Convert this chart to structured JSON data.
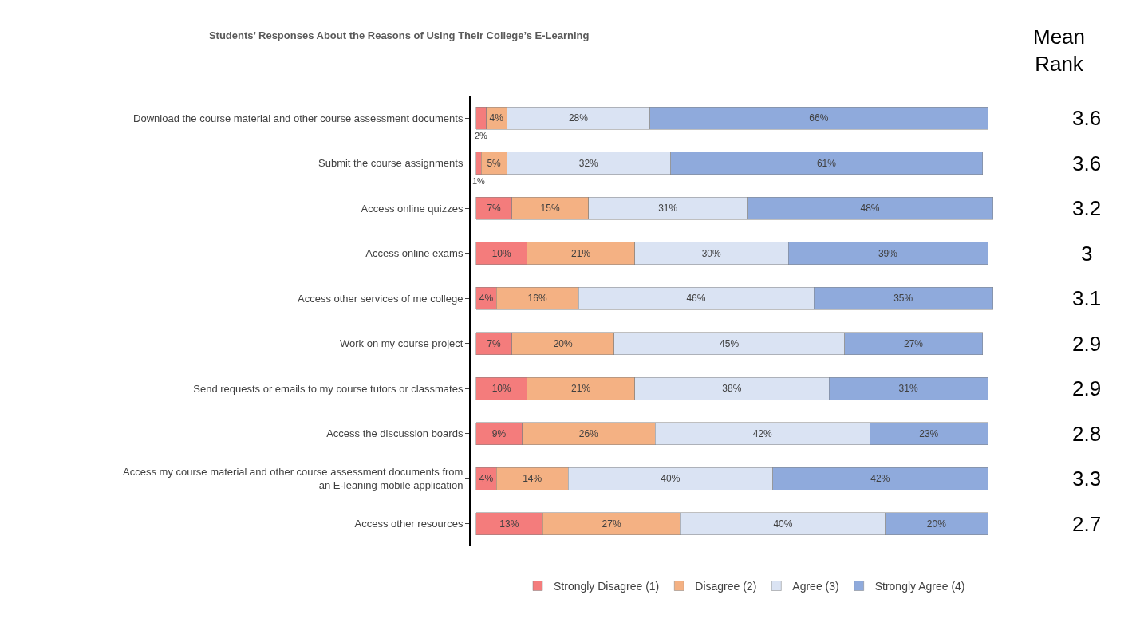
{
  "chart_data": {
    "type": "bar",
    "orientation": "horizontal",
    "stacked": true,
    "title": "Students’ Responses About the Reasons of Using Their College’s E-Learning",
    "categories": [
      "Download the course material and other course assessment documents",
      "Submit the course assignments",
      "Access online quizzes",
      "Access online exams",
      "Access other services of me college",
      "Work on my course project",
      "Send requests or emails to my course tutors or classmates",
      "Access the discussion boards",
      "Access my course material and other course assessment documents from an E-leaning mobile application",
      "Access other resources"
    ],
    "series": [
      {
        "name": "Strongly Disagree (1)",
        "color": "#f47c7c",
        "values": [
          2,
          1,
          7,
          10,
          4,
          7,
          10,
          9,
          4,
          13
        ],
        "value_labels": [
          "2%",
          "1%",
          "7%",
          "10%",
          "4%",
          "7%",
          "10%",
          "9%",
          "4%",
          "13%"
        ]
      },
      {
        "name": "Disagree (2)",
        "color": "#f4b183",
        "values": [
          4,
          5,
          15,
          21,
          16,
          20,
          21,
          26,
          14,
          27
        ],
        "value_labels": [
          "4%",
          "5%",
          "15%",
          "21%",
          "16%",
          "20%",
          "21%",
          "26%",
          "14%",
          "27%"
        ]
      },
      {
        "name": "Agree (3)",
        "color": "#dae3f3",
        "values": [
          28,
          32,
          31,
          30,
          46,
          45,
          38,
          42,
          40,
          40
        ],
        "value_labels": [
          "28%",
          "32%",
          "31%",
          "30%",
          "46%",
          "45%",
          "38%",
          "42%",
          "40%",
          "40%"
        ]
      },
      {
        "name": "Strongly Agree (4)",
        "color": "#8faadc",
        "values": [
          66,
          61,
          48,
          39,
          35,
          27,
          31,
          23,
          42,
          20
        ],
        "value_labels": [
          "66%",
          "61%",
          "48%",
          "39%",
          "35%",
          "27%",
          "31%",
          "23%",
          "42%",
          "20%"
        ]
      }
    ],
    "annotations": [
      "Mean Rank",
      "3.6",
      "3.6",
      "3.2",
      "3",
      "3.1",
      "2.9",
      "2.9",
      "2.8",
      "3.3",
      "2.7"
    ],
    "legend": "bottom"
  }
}
